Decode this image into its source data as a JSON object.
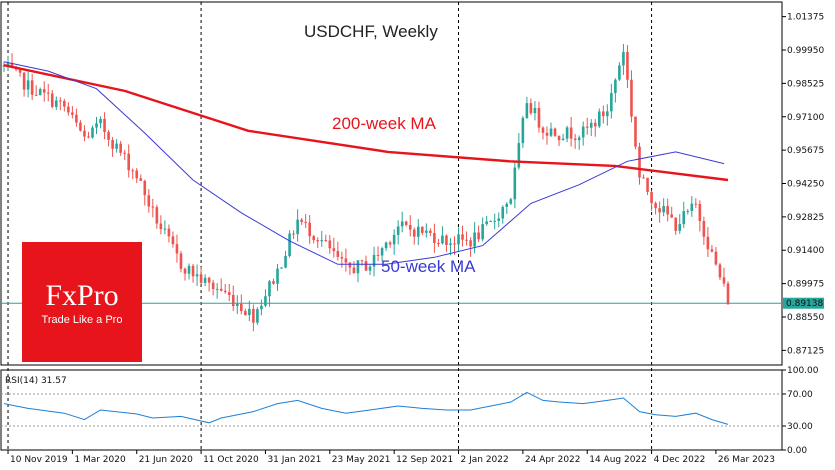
{
  "chart_data": [
    {
      "type": "candlestick",
      "title": "USDCHF, Weekly",
      "price_ylim": [
        0.865,
        1.02
      ],
      "grid": false,
      "price_tick_labels": [
        "1.01375",
        "0.99950",
        "0.98525",
        "0.97100",
        "0.95675",
        "0.94250",
        "0.92825",
        "0.91400",
        "0.89975",
        "0.88550",
        "0.87125"
      ],
      "price_tick_values": [
        1.01375,
        0.9995,
        0.98525,
        0.971,
        0.95675,
        0.9425,
        0.92825,
        0.914,
        0.89975,
        0.8855,
        0.87125
      ],
      "current_price_label": "0.89138",
      "current_price": 0.89138,
      "x_tick_labels": [
        "10 Nov 2019",
        "1 Mar 2020",
        "21 Jun 2020",
        "11 Oct 2020",
        "31 Jan 2021",
        "23 May 2021",
        "12 Sep 2021",
        "2 Jan 2022",
        "24 Apr 2022",
        "14 Aug 2022",
        "4 Dec 2022",
        "26 Mar 2023"
      ],
      "x_tick_dates": [
        "2019-11-10",
        "2020-03-01",
        "2020-06-21",
        "2020-10-11",
        "2021-01-31",
        "2021-05-23",
        "2021-09-12",
        "2022-01-02",
        "2022-04-24",
        "2022-08-14",
        "2022-12-04",
        "2023-03-26"
      ],
      "date_separators": [
        "2019-11-10",
        "2020-10-11",
        "2022-01-02",
        "2022-12-04"
      ],
      "closes_anchor_dates": [
        "2019-11-03",
        "2019-12-15",
        "2020-02-16",
        "2020-03-22",
        "2020-04-19",
        "2020-06-21",
        "2020-07-19",
        "2020-09-06",
        "2020-10-25",
        "2020-11-15",
        "2021-01-10",
        "2021-02-21",
        "2021-03-28",
        "2021-05-09",
        "2021-06-20",
        "2021-08-01",
        "2021-09-19",
        "2021-10-31",
        "2021-12-12",
        "2022-01-23",
        "2022-02-27",
        "2022-04-03",
        "2022-05-01",
        "2022-05-29",
        "2022-06-26",
        "2022-08-07",
        "2022-09-18",
        "2022-10-16",
        "2022-11-13",
        "2022-12-11",
        "2023-01-15",
        "2023-02-19",
        "2023-03-19",
        "2023-04-16"
      ],
      "closes_anchor_values": [
        0.9925,
        0.984,
        0.975,
        0.962,
        0.9675,
        0.946,
        0.93,
        0.908,
        0.899,
        0.897,
        0.886,
        0.905,
        0.927,
        0.918,
        0.906,
        0.908,
        0.924,
        0.922,
        0.918,
        0.918,
        0.925,
        0.937,
        0.978,
        0.966,
        0.964,
        0.964,
        0.974,
        1.0,
        0.945,
        0.934,
        0.925,
        0.933,
        0.912,
        0.893
      ],
      "series": [
        {
          "name": "200-week MA",
          "color": "#e8141c",
          "x": [
            "2019-11-03",
            "2020-06-01",
            "2021-01-01",
            "2021-09-01",
            "2022-04-01",
            "2022-10-01",
            "2023-04-16"
          ],
          "values": [
            0.993,
            0.982,
            0.965,
            0.956,
            0.952,
            0.95,
            0.944
          ]
        },
        {
          "name": "50-week MA",
          "color": "#3a3ad6",
          "x": [
            "2019-11-03",
            "2020-01-19",
            "2020-04-12",
            "2020-07-05",
            "2020-09-27",
            "2020-12-20",
            "2021-03-14",
            "2021-06-06",
            "2021-08-29",
            "2021-11-21",
            "2022-02-13",
            "2022-05-08",
            "2022-07-31",
            "2022-10-23",
            "2023-01-15",
            "2023-04-09"
          ],
          "values": [
            0.9945,
            0.9905,
            0.983,
            0.964,
            0.944,
            0.93,
            0.918,
            0.908,
            0.908,
            0.911,
            0.916,
            0.934,
            0.942,
            0.952,
            0.956,
            0.951
          ]
        }
      ],
      "annotations": [
        {
          "text": "200-week MA",
          "color": "#e8141c"
        },
        {
          "text": "50-week MA",
          "color": "#3a3ad6"
        }
      ],
      "up_color": "#26a69a",
      "down_color": "#ef5350"
    },
    {
      "type": "line",
      "title": "RSI(14) 31.57",
      "ylim": [
        0,
        100
      ],
      "levels": [
        30,
        70
      ],
      "tick_labels": [
        "100.00",
        "70.00",
        "30.00",
        "0.00"
      ],
      "tick_values": [
        100,
        70,
        30,
        0
      ],
      "series": [
        {
          "name": "RSI(14)",
          "color": "#1e7fd6",
          "x": [
            "2019-11-03",
            "2019-12-15",
            "2020-02-16",
            "2020-03-22",
            "2020-04-19",
            "2020-06-21",
            "2020-07-19",
            "2020-09-06",
            "2020-10-25",
            "2020-11-15",
            "2021-01-10",
            "2021-02-21",
            "2021-03-28",
            "2021-05-09",
            "2021-06-20",
            "2021-08-01",
            "2021-09-19",
            "2021-10-31",
            "2021-12-12",
            "2022-01-23",
            "2022-02-27",
            "2022-04-03",
            "2022-05-01",
            "2022-05-29",
            "2022-06-26",
            "2022-08-07",
            "2022-09-18",
            "2022-10-16",
            "2022-11-13",
            "2022-12-11",
            "2023-01-15",
            "2023-02-19",
            "2023-03-19",
            "2023-04-16"
          ],
          "values": [
            58,
            52,
            46,
            38,
            50,
            45,
            40,
            42,
            34,
            40,
            48,
            58,
            62,
            52,
            46,
            50,
            55,
            52,
            50,
            50,
            55,
            60,
            72,
            62,
            60,
            58,
            62,
            65,
            48,
            44,
            42,
            46,
            38,
            32
          ]
        }
      ]
    }
  ],
  "logo": {
    "brand": "FxPro",
    "tagline": "Trade Like a Pro",
    "bg_color": "#e8141c"
  }
}
